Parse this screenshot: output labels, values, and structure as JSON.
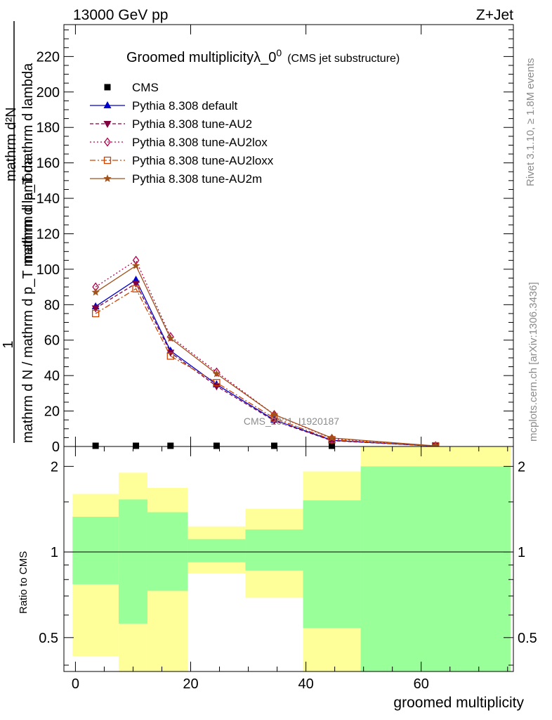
{
  "header": {
    "energy_label": "13000 GeV pp",
    "process_label": "Z+Jet",
    "side_label_top": "Rivet 3.1.10, ≥ 1.8M events",
    "side_label_bottom": "mcplots.cern.ch [arXiv:1306.3436]"
  },
  "colors": {
    "cms": "#000000",
    "default": "#0000cc",
    "au2": "#800040",
    "au2lox": "#b2004d",
    "au2loxx": "#cc4400",
    "au2m": "#a0521c",
    "band_inner": "#99ff99",
    "band_outer": "#ffff99"
  },
  "chart_data": [
    {
      "type": "line",
      "title_main": "Groomed multiplicityλ_0",
      "title_sup": "0",
      "title_sub": "(CMS jet substructure)",
      "ylabel_top": "1",
      "ylabel_denominator": "mathrm d N / mathrm d p_T mathrm d lambda",
      "ylabel_numerator": "mathrm d²N",
      "ylabel_denominator_line2": "mathrm d p_T mathrm d lambda",
      "watermark": "CMS_2021_I1920187",
      "xlim": [
        -2,
        76
      ],
      "ylim": [
        0,
        238
      ],
      "yticks": [
        0,
        20,
        40,
        60,
        80,
        100,
        120,
        140,
        160,
        180,
        200,
        220
      ],
      "legend_position": "top-left",
      "series": [
        {
          "name": "CMS",
          "key": "cms",
          "marker": "square",
          "x": [
            3.5,
            10.5,
            16.5,
            24.5,
            34.5,
            44.5
          ],
          "y": [
            0.2,
            0.2,
            0.2,
            0.2,
            0.2,
            0.2
          ]
        },
        {
          "name": "Pythia 8.308 default",
          "key": "default",
          "marker": "triangle-up",
          "dash": "",
          "x": [
            3.5,
            10.5,
            16.5,
            24.5,
            34.5,
            44.5,
            62.5
          ],
          "y": [
            79,
            94,
            54,
            35,
            15,
            3.5,
            0.2
          ]
        },
        {
          "name": "Pythia 8.308 tune-AU2",
          "key": "au2",
          "marker": "triangle-down",
          "dash": "5,3",
          "x": [
            3.5,
            10.5,
            16.5,
            24.5,
            34.5,
            44.5,
            62.5
          ],
          "y": [
            78,
            92,
            53,
            34,
            14.5,
            3.3,
            0.2
          ]
        },
        {
          "name": "Pythia 8.308 tune-AU2lox",
          "key": "au2lox",
          "marker": "diamond-open",
          "dash": "2,3",
          "x": [
            3.5,
            10.5,
            16.5,
            24.5,
            34.5,
            44.5,
            62.5
          ],
          "y": [
            90,
            105,
            62,
            42,
            18,
            4.5,
            0.3
          ]
        },
        {
          "name": "Pythia 8.308 tune-AU2loxx",
          "key": "au2loxx",
          "marker": "square-open",
          "dash": "8,3,2,3",
          "x": [
            3.5,
            10.5,
            16.5,
            24.5,
            34.5,
            44.5,
            62.5
          ],
          "y": [
            75,
            89,
            51,
            36,
            16,
            3.8,
            0.2
          ]
        },
        {
          "name": "Pythia 8.308 tune-AU2m",
          "key": "au2m",
          "marker": "star",
          "dash": "",
          "x": [
            3.5,
            10.5,
            16.5,
            24.5,
            34.5,
            44.5,
            62.5
          ],
          "y": [
            87,
            102,
            61,
            41,
            18,
            4.8,
            0.3
          ]
        }
      ]
    },
    {
      "type": "area",
      "ylabel": "Ratio to CMS",
      "xlabel": "groomed multiplicity",
      "scale": "log",
      "xlim": [
        -2,
        76
      ],
      "ylim": [
        0.38,
        2.35
      ],
      "yticks": [
        0.5,
        1,
        2
      ],
      "xticks": [
        0,
        20,
        40,
        60
      ],
      "reference_line": 1,
      "bins": [
        {
          "x0": -0.5,
          "x1": 7.5,
          "outer": [
            0.43,
            1.6
          ],
          "inner": [
            0.77,
            1.33
          ]
        },
        {
          "x0": 7.5,
          "x1": 12.5,
          "outer": [
            0.38,
            1.9
          ],
          "inner": [
            0.56,
            1.53
          ]
        },
        {
          "x0": 12.5,
          "x1": 19.5,
          "outer": [
            0.38,
            1.68
          ],
          "inner": [
            0.73,
            1.38
          ]
        },
        {
          "x0": 19.5,
          "x1": 29.5,
          "outer": [
            0.84,
            1.23
          ],
          "inner": [
            0.92,
            1.11
          ]
        },
        {
          "x0": 29.5,
          "x1": 39.5,
          "outer": [
            0.69,
            1.42
          ],
          "inner": [
            0.86,
            1.2
          ]
        },
        {
          "x0": 39.5,
          "x1": 49.5,
          "outer": [
            0.38,
            1.92
          ],
          "inner": [
            0.54,
            1.52
          ]
        },
        {
          "x0": 49.5,
          "x1": 75.5,
          "outer": [
            0.38,
            2.35
          ],
          "inner": [
            0.38,
            2.0
          ]
        }
      ]
    }
  ]
}
